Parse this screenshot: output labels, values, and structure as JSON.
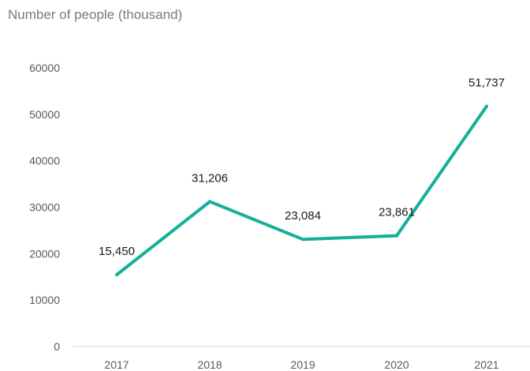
{
  "chart_data": {
    "type": "line",
    "title": "",
    "subtitle": "Number of people (thousand)",
    "xlabel": "",
    "ylabel": "",
    "categories": [
      "2017",
      "2018",
      "2019",
      "2020",
      "2021"
    ],
    "series": [
      {
        "values": [
          15450,
          31206,
          23084,
          23861,
          51737
        ],
        "data_labels": [
          "15,450",
          "31,206",
          "23,084",
          "23,861",
          "51,737"
        ],
        "color": "#14b097"
      }
    ],
    "yticks": [
      "0",
      "10000",
      "20000",
      "30000",
      "40000",
      "50000",
      "60000"
    ],
    "ylim": [
      0,
      60000
    ],
    "grid": false,
    "legend": "none",
    "colors": {
      "line": "#14b097",
      "axis": "#d9d9d9",
      "tick_text": "#595959",
      "subtitle_text": "#7a7a7a",
      "label_text": "#1a1a1a"
    }
  }
}
